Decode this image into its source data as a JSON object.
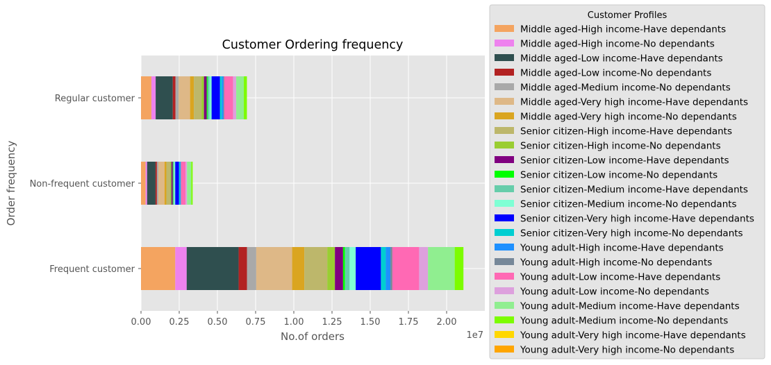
{
  "chart_data": {
    "type": "bar",
    "orientation": "horizontal",
    "stacked": true,
    "title": "Customer Ordering frequency",
    "xlabel": "No.of orders",
    "ylabel": "Order frequency",
    "x_offset_label": "1e7",
    "x_scale": 10000000,
    "xlim": [
      0,
      2.25
    ],
    "x_ticks": [
      {
        "value": 0.0,
        "label": "0.00"
      },
      {
        "value": 0.25,
        "label": "0.25"
      },
      {
        "value": 0.5,
        "label": "0.50"
      },
      {
        "value": 0.75,
        "label": "0.75"
      },
      {
        "value": 1.0,
        "label": "1.00"
      },
      {
        "value": 1.25,
        "label": "1.25"
      },
      {
        "value": 1.5,
        "label": "1.50"
      },
      {
        "value": 1.75,
        "label": "1.75"
      },
      {
        "value": 2.0,
        "label": "2.00"
      }
    ],
    "categories": [
      "Frequent customer",
      "Non-frequent customer",
      "Regular customer"
    ],
    "grid": true,
    "legend": {
      "title": "Customer Profiles",
      "position": "outside-right"
    },
    "series": [
      {
        "name": "Middle aged-High income-Have dependants",
        "color": "#f4a460",
        "values": [
          0.224,
          0.03,
          0.068
        ]
      },
      {
        "name": "Middle aged-High income-No dependants",
        "color": "#ee82ee",
        "values": [
          0.075,
          0.01,
          0.028
        ]
      },
      {
        "name": "Middle aged-Low income-Have dependants",
        "color": "#2f4f4f",
        "values": [
          0.34,
          0.055,
          0.112
        ]
      },
      {
        "name": "Middle aged-Low income-No dependants",
        "color": "#b22222",
        "values": [
          0.055,
          0.009,
          0.018
        ]
      },
      {
        "name": "Middle aged-Medium income-No dependants",
        "color": "#a9a9a9",
        "values": [
          0.06,
          0.01,
          0.02
        ]
      },
      {
        "name": "Middle aged-Very high income-Have dependants",
        "color": "#deb887",
        "values": [
          0.235,
          0.04,
          0.075
        ]
      },
      {
        "name": "Middle aged-Very high income-No dependants",
        "color": "#daa520",
        "values": [
          0.08,
          0.012,
          0.025
        ]
      },
      {
        "name": "Senior citizen-High income-Have dependants",
        "color": "#bdb76b",
        "values": [
          0.15,
          0.025,
          0.05
        ]
      },
      {
        "name": "Senior citizen-High income-No dependants",
        "color": "#9acd32",
        "values": [
          0.05,
          0.008,
          0.016
        ]
      },
      {
        "name": "Senior citizen-Low income-Have dependants",
        "color": "#800080",
        "values": [
          0.053,
          0.009,
          0.018
        ]
      },
      {
        "name": "Senior citizen-Low income-No dependants",
        "color": "#00ff00",
        "values": [
          0.013,
          0.003,
          0.006
        ]
      },
      {
        "name": "Senior citizen-Medium income-Have dependants",
        "color": "#66cdaa",
        "values": [
          0.03,
          0.006,
          0.012
        ]
      },
      {
        "name": "Senior citizen-Medium income-No dependants",
        "color": "#7fffd4",
        "values": [
          0.04,
          0.007,
          0.014
        ]
      },
      {
        "name": "Senior citizen-Very high income-Have dependants",
        "color": "#0000ff",
        "values": [
          0.165,
          0.025,
          0.055
        ]
      },
      {
        "name": "Senior citizen-Very high income-No dependants",
        "color": "#00ced1",
        "values": [
          0.032,
          0.006,
          0.012
        ]
      },
      {
        "name": "Young adult-High income-Have dependants",
        "color": "#1e90ff",
        "values": [
          0.03,
          0.005,
          0.01
        ]
      },
      {
        "name": "Young adult-High income-No dependants",
        "color": "#778899",
        "values": [
          0.013,
          0.003,
          0.006
        ]
      },
      {
        "name": "Young adult-Low income-Have dependants",
        "color": "#ff69b4",
        "values": [
          0.175,
          0.028,
          0.058
        ]
      },
      {
        "name": "Young adult-Low income-No dependants",
        "color": "#dda0dd",
        "values": [
          0.058,
          0.01,
          0.02
        ]
      },
      {
        "name": "Young adult-Medium income-Have dependants",
        "color": "#90ee90",
        "values": [
          0.175,
          0.028,
          0.05
        ]
      },
      {
        "name": "Young adult-Medium income-No dependants",
        "color": "#7cfc00",
        "values": [
          0.057,
          0.009,
          0.02
        ]
      },
      {
        "name": "Young adult-Very high income-Have dependants",
        "color": "#ffd700",
        "values": [
          0.0,
          0.0,
          0.0
        ]
      },
      {
        "name": "Young adult-Very high income-No dependants",
        "color": "#ffa500",
        "values": [
          0.0,
          0.0,
          0.0
        ]
      }
    ]
  }
}
